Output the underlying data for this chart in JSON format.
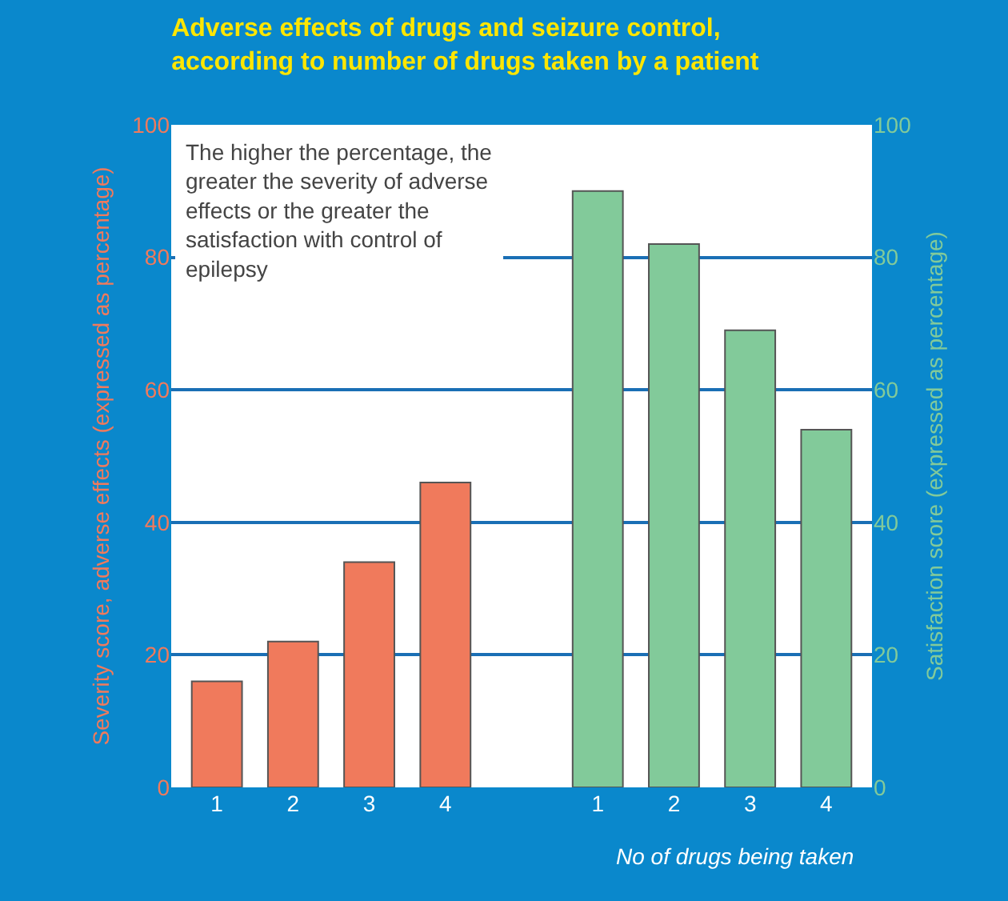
{
  "chart_data": {
    "type": "bar",
    "title": "Adverse effects of drugs and seizure control,\naccording to number of drugs taken by a patient",
    "xlabel": "No of drugs being taken",
    "ylabel": "Severity score, adverse effects (expressed as percentage)",
    "y2label": "Satisfaction score (expressed as percentage)",
    "categories": [
      "1",
      "2",
      "3",
      "4",
      null,
      "1",
      "2",
      "3",
      "4"
    ],
    "series": [
      {
        "color": "#f07a5c",
        "values": [
          16,
          22,
          34,
          46,
          null,
          null,
          null,
          null,
          null
        ]
      },
      {
        "color": "#82ca9a",
        "axis": "y2",
        "values": [
          null,
          null,
          null,
          null,
          null,
          90,
          82,
          69,
          54
        ]
      }
    ],
    "ylim": [
      0,
      100
    ],
    "yticks": [
      0,
      20,
      40,
      60,
      80,
      100
    ],
    "y2lim": [
      0,
      100
    ],
    "y2ticks": [
      0,
      20,
      40,
      60,
      80,
      100
    ],
    "grid": "y",
    "legend": false,
    "annotations": [
      "The higher the percentage, the\ngreater the severity of adverse\neffects or the greater the\nsatisfaction with control of\nepilepsy"
    ]
  }
}
